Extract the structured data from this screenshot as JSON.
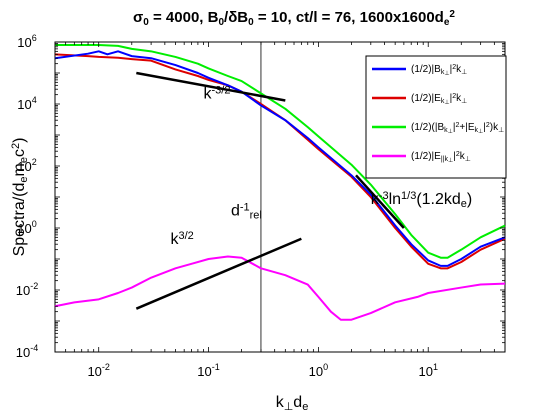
{
  "chart_data": {
    "type": "line",
    "title_parts": [
      {
        "t": "σ",
        "s": "n"
      },
      {
        "t": "0",
        "s": "sub"
      },
      {
        "t": " = 4000, B",
        "s": "n"
      },
      {
        "t": "0",
        "s": "sub"
      },
      {
        "t": "/δB",
        "s": "n"
      },
      {
        "t": "0",
        "s": "sub"
      },
      {
        "t": " = 10, ct/l = 76, 1600x1600d",
        "s": "n"
      },
      {
        "t": "e",
        "s": "sub"
      },
      {
        "t": "2",
        "s": "sup"
      }
    ],
    "xlabel_parts": [
      {
        "t": "k",
        "s": "n"
      },
      {
        "t": "⊥",
        "s": "sub"
      },
      {
        "t": "d",
        "s": "n"
      },
      {
        "t": "e",
        "s": "sub"
      }
    ],
    "ylabel_parts": [
      {
        "t": "Spectra/(d",
        "s": "n"
      },
      {
        "t": "e",
        "s": "sub"
      },
      {
        "t": "m",
        "s": "n"
      },
      {
        "t": "e",
        "s": "sub"
      },
      {
        "t": "c",
        "s": "n"
      },
      {
        "t": "2",
        "s": "sup"
      },
      {
        "t": ")",
        "s": "n"
      }
    ],
    "x_scale": "log",
    "y_scale": "log",
    "xlim": [
      0.004,
      50
    ],
    "ylim": [
      0.0001,
      1000000
    ],
    "x_ticks": [
      {
        "value": 0.01,
        "base": "10",
        "exp": "-2"
      },
      {
        "value": 0.1,
        "base": "10",
        "exp": "-1"
      },
      {
        "value": 1,
        "base": "10",
        "exp": "0"
      },
      {
        "value": 10,
        "base": "10",
        "exp": "1"
      }
    ],
    "y_ticks": [
      {
        "value": 0.0001,
        "base": "10",
        "exp": "-4"
      },
      {
        "value": 0.01,
        "base": "10",
        "exp": "-2"
      },
      {
        "value": 1,
        "base": "10",
        "exp": "0"
      },
      {
        "value": 100,
        "base": "10",
        "exp": "2"
      },
      {
        "value": 10000,
        "base": "10",
        "exp": "4"
      },
      {
        "value": 1000000,
        "base": "10",
        "exp": "6"
      }
    ],
    "grid": false,
    "legend_position": "top-right",
    "series": [
      {
        "name_parts": [
          {
            "t": "(1/2)|B",
            "s": "n"
          },
          {
            "t": "k",
            "s": "sub"
          },
          {
            "t": "⊥",
            "s": "sub2"
          },
          {
            "t": "|",
            "s": "n"
          },
          {
            "t": "2",
            "s": "sup"
          },
          {
            "t": "k",
            "s": "n"
          },
          {
            "t": "⊥",
            "s": "sub"
          }
        ],
        "color": "#0000ff",
        "points": [
          [
            0.004,
            300000
          ],
          [
            0.008,
            420000
          ],
          [
            0.01,
            500000
          ],
          [
            0.012,
            400000
          ],
          [
            0.015,
            500000
          ],
          [
            0.02,
            350000
          ],
          [
            0.03,
            300000
          ],
          [
            0.05,
            180000
          ],
          [
            0.08,
            100000
          ],
          [
            0.1,
            70000
          ],
          [
            0.15,
            40000
          ],
          [
            0.2,
            25000
          ],
          [
            0.3,
            9000
          ],
          [
            0.5,
            3000
          ],
          [
            0.8,
            800
          ],
          [
            1.0,
            400
          ],
          [
            2.0,
            50
          ],
          [
            3.0,
            12
          ],
          [
            5.0,
            1.2
          ],
          [
            7.0,
            0.3
          ],
          [
            10.0,
            0.09
          ],
          [
            13.0,
            0.06
          ],
          [
            15.0,
            0.06
          ],
          [
            20.0,
            0.1
          ],
          [
            30.0,
            0.25
          ],
          [
            50.0,
            0.5
          ]
        ]
      },
      {
        "name_parts": [
          {
            "t": "(1/2)|E",
            "s": "n"
          },
          {
            "t": "k",
            "s": "sub"
          },
          {
            "t": "⊥",
            "s": "sub2"
          },
          {
            "t": "|",
            "s": "n"
          },
          {
            "t": "2",
            "s": "sup"
          },
          {
            "t": "k",
            "s": "n"
          },
          {
            "t": "⊥",
            "s": "sub"
          }
        ],
        "color": "#dd0000",
        "points": [
          [
            0.004,
            400000
          ],
          [
            0.008,
            350000
          ],
          [
            0.01,
            330000
          ],
          [
            0.015,
            310000
          ],
          [
            0.02,
            280000
          ],
          [
            0.03,
            250000
          ],
          [
            0.05,
            130000
          ],
          [
            0.08,
            80000
          ],
          [
            0.1,
            60000
          ],
          [
            0.15,
            40000
          ],
          [
            0.2,
            25000
          ],
          [
            0.3,
            10000
          ],
          [
            0.5,
            3000
          ],
          [
            0.8,
            700
          ],
          [
            1.0,
            350
          ],
          [
            2.0,
            45
          ],
          [
            3.0,
            10
          ],
          [
            5.0,
            1.0
          ],
          [
            7.0,
            0.25
          ],
          [
            10.0,
            0.07
          ],
          [
            13.0,
            0.05
          ],
          [
            15.0,
            0.05
          ],
          [
            20.0,
            0.08
          ],
          [
            30.0,
            0.2
          ],
          [
            50.0,
            0.45
          ]
        ]
      },
      {
        "name_parts": [
          {
            "t": "(1/2)(|B",
            "s": "n"
          },
          {
            "t": "k",
            "s": "sub"
          },
          {
            "t": "⊥",
            "s": "sub2"
          },
          {
            "t": "|",
            "s": "n"
          },
          {
            "t": "2",
            "s": "sup"
          },
          {
            "t": "+|E",
            "s": "n"
          },
          {
            "t": "k",
            "s": "sub"
          },
          {
            "t": "⊥",
            "s": "sub2"
          },
          {
            "t": "|",
            "s": "n"
          },
          {
            "t": "2",
            "s": "sup"
          },
          {
            "t": ")k",
            "s": "n"
          },
          {
            "t": "⊥",
            "s": "sub"
          }
        ],
        "color": "#00ee00",
        "points": [
          [
            0.004,
            800000
          ],
          [
            0.008,
            800000
          ],
          [
            0.01,
            800000
          ],
          [
            0.015,
            750000
          ],
          [
            0.02,
            600000
          ],
          [
            0.03,
            500000
          ],
          [
            0.05,
            330000
          ],
          [
            0.08,
            200000
          ],
          [
            0.1,
            140000
          ],
          [
            0.15,
            80000
          ],
          [
            0.2,
            55000
          ],
          [
            0.3,
            22000
          ],
          [
            0.5,
            7000
          ],
          [
            0.8,
            1800
          ],
          [
            1.0,
            900
          ],
          [
            2.0,
            110
          ],
          [
            3.0,
            25
          ],
          [
            5.0,
            2.8
          ],
          [
            7.0,
            0.6
          ],
          [
            10.0,
            0.16
          ],
          [
            13.0,
            0.11
          ],
          [
            15.0,
            0.11
          ],
          [
            20.0,
            0.2
          ],
          [
            30.0,
            0.5
          ],
          [
            50.0,
            1.2
          ]
        ]
      },
      {
        "name_parts": [
          {
            "t": "(1/2)|E",
            "s": "n"
          },
          {
            "t": "||",
            "s": "sub"
          },
          {
            "t": "k",
            "s": "sub"
          },
          {
            "t": "⊥",
            "s": "sub2"
          },
          {
            "t": "|",
            "s": "n"
          },
          {
            "t": "2",
            "s": "sup"
          },
          {
            "t": "k",
            "s": "n"
          },
          {
            "t": "⊥",
            "s": "sub"
          }
        ],
        "color": "#ff00ff",
        "points": [
          [
            0.004,
            0.003
          ],
          [
            0.006,
            0.004
          ],
          [
            0.01,
            0.005
          ],
          [
            0.015,
            0.008
          ],
          [
            0.02,
            0.012
          ],
          [
            0.03,
            0.025
          ],
          [
            0.05,
            0.05
          ],
          [
            0.07,
            0.07
          ],
          [
            0.1,
            0.1
          ],
          [
            0.15,
            0.12
          ],
          [
            0.2,
            0.11
          ],
          [
            0.3,
            0.05
          ],
          [
            0.5,
            0.03
          ],
          [
            0.8,
            0.015
          ],
          [
            1.0,
            0.006
          ],
          [
            1.3,
            0.002
          ],
          [
            1.6,
            0.0011
          ],
          [
            2.0,
            0.0011
          ],
          [
            3.0,
            0.0018
          ],
          [
            5.0,
            0.004
          ],
          [
            8.0,
            0.006
          ],
          [
            10.0,
            0.008
          ],
          [
            20.0,
            0.012
          ],
          [
            30.0,
            0.015
          ],
          [
            50.0,
            0.016
          ]
        ]
      }
    ],
    "reference_lines": [
      {
        "x": [
          0.022,
          0.5
        ],
        "y": [
          100000,
          13000
        ],
        "color": "#000000"
      },
      {
        "x": [
          0.022,
          0.7
        ],
        "y": [
          0.0025,
          0.45
        ],
        "color": "#000000"
      },
      {
        "x": [
          2.2,
          6.0
        ],
        "y": [
          50,
          1.0
        ],
        "color": "#000000"
      }
    ],
    "vertical_lines": [
      {
        "x": 0.3,
        "color": "#000000"
      }
    ],
    "annotations": [
      {
        "name": "kminus32-label",
        "x": 0.09,
        "y": 15000,
        "parts": [
          {
            "t": "k",
            "s": "n"
          },
          {
            "t": "-3/2",
            "s": "sup"
          }
        ]
      },
      {
        "name": "k32-label",
        "x": 0.045,
        "y": 0.3,
        "parts": [
          {
            "t": "k",
            "s": "n"
          },
          {
            "t": "3/2",
            "s": "sup"
          }
        ]
      },
      {
        "name": "drel-label",
        "x": 0.16,
        "y": 2.5,
        "parts": [
          {
            "t": "d",
            "s": "n"
          },
          {
            "t": "-1",
            "s": "sup"
          },
          {
            "t": "rel",
            "s": "sub"
          }
        ]
      },
      {
        "name": "kminus3-ln-label",
        "x": 3.0,
        "y": 6,
        "parts": [
          {
            "t": "k",
            "s": "n"
          },
          {
            "t": "-3",
            "s": "sup"
          },
          {
            "t": "ln",
            "s": "n"
          },
          {
            "t": "1/3",
            "s": "sup"
          },
          {
            "t": "(1.2kd",
            "s": "n"
          },
          {
            "t": "e",
            "s": "sub"
          },
          {
            "t": ")",
            "s": "n"
          }
        ]
      }
    ]
  }
}
